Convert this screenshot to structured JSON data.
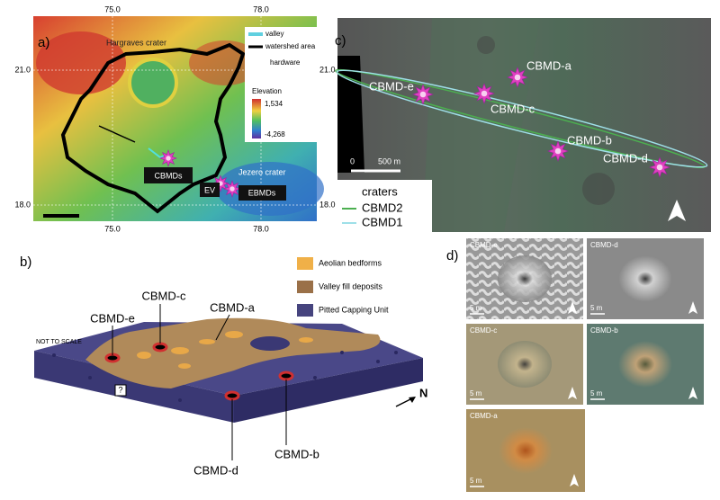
{
  "panel_a": {
    "label": "a)",
    "lon_top": [
      "75.0",
      "78.0"
    ],
    "lon_bottom": [
      "75.0",
      "78.0"
    ],
    "lat_left": [
      "21.0",
      "18.0"
    ],
    "lat_right": [
      "21.0",
      "18.0"
    ],
    "places": {
      "hargraves": "Hargraves crater",
      "jezero": "Jezero crater",
      "cbmds": "CBMDs",
      "ev": "EV",
      "ebmds": "EBMDs"
    },
    "legend": {
      "valley": "valley",
      "watershed": "watershed area",
      "hardware": "hardware",
      "elevation": "Elevation",
      "max": "1,534",
      "min": "-4,268"
    }
  },
  "panel_b": {
    "label": "b)",
    "legend": [
      "Aeolian bedforms",
      "Valley fill deposits",
      "Pitted Capping Unit"
    ],
    "note": "NOT TO SCALE",
    "unknown": "?",
    "north": "N",
    "sites": [
      "CBMD-e",
      "CBMD-c",
      "CBMD-a",
      "CBMD-b",
      "CBMD-d"
    ]
  },
  "panel_c": {
    "label": "c)",
    "sites": [
      "CBMD-a",
      "CBMD-e",
      "CBMD-c",
      "CBMD-b",
      "CBMD-d"
    ],
    "scale": [
      "0",
      "500 m"
    ],
    "legend": [
      "craters",
      "CBMD2",
      "CBMD1"
    ]
  },
  "panel_d": {
    "label": "d)",
    "tiles": [
      {
        "name": "CBMD-e",
        "scale": "5 m"
      },
      {
        "name": "CBMD-d",
        "scale": "5 m"
      },
      {
        "name": "CBMD-c",
        "scale": "5 m"
      },
      {
        "name": "CBMD-b",
        "scale": "5 m"
      },
      {
        "name": "CBMD-a",
        "scale": "5 m"
      }
    ]
  }
}
